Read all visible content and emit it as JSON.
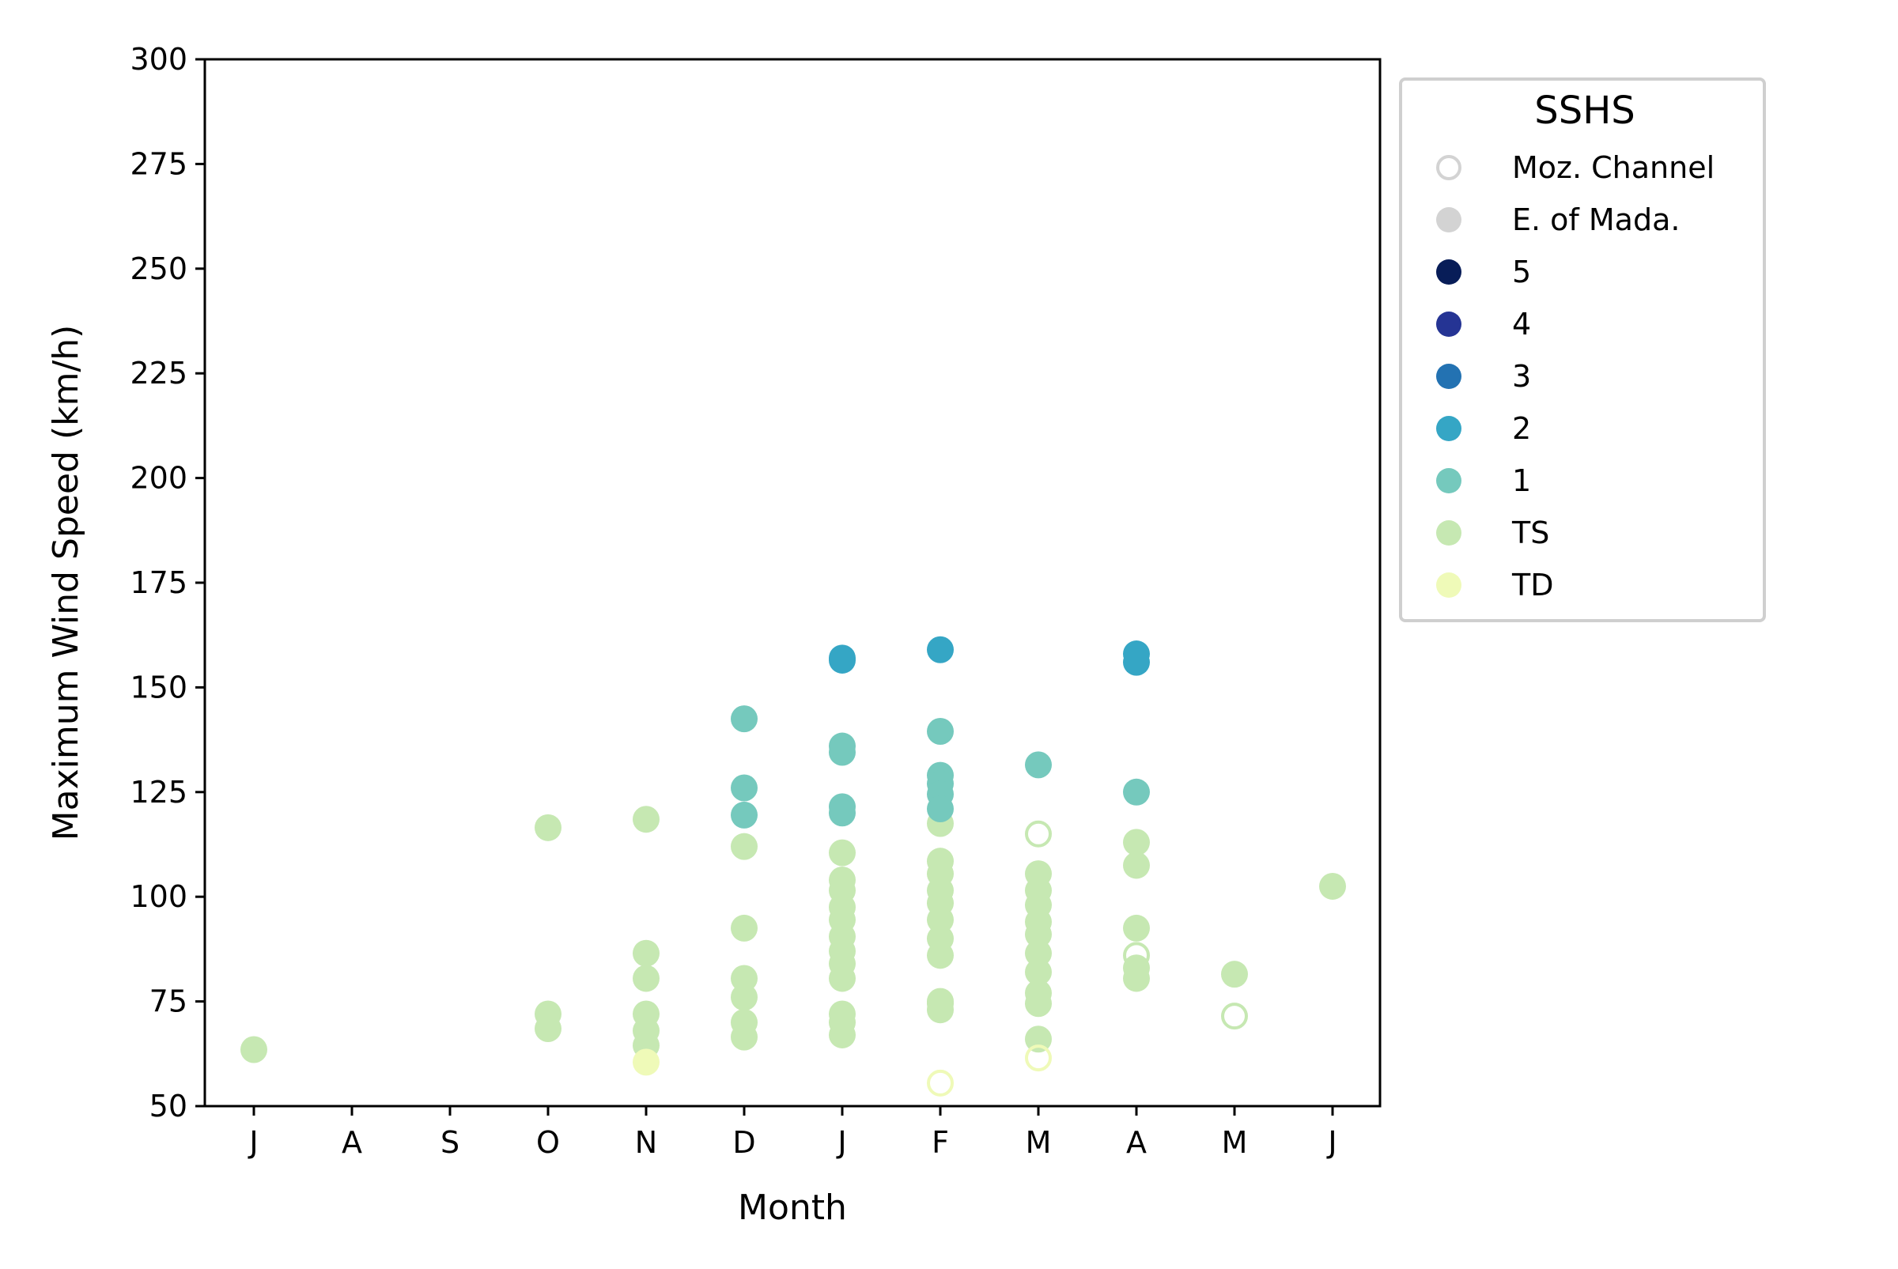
{
  "chart_data": {
    "type": "scatter",
    "title": "",
    "xlabel": "Month",
    "ylabel": "Maximum Wind Speed (km/h)",
    "categories": [
      "J",
      "A",
      "S",
      "O",
      "N",
      "D",
      "J",
      "F",
      "M",
      "A",
      "M",
      "J"
    ],
    "ylim": [
      50,
      300
    ],
    "yticks": [
      50,
      75,
      100,
      125,
      150,
      175,
      200,
      225,
      250,
      275,
      300
    ],
    "grid": false,
    "legend": {
      "title": "SSHS",
      "position": "outside-top-right",
      "entries": [
        {
          "label": "Moz. Channel",
          "marker": "hollow",
          "color": "#d3d3d3"
        },
        {
          "label": "E. of Mada.",
          "marker": "filled",
          "color": "#d3d3d3"
        },
        {
          "label": "5",
          "marker": "filled",
          "color": "#081d58"
        },
        {
          "label": "4",
          "marker": "filled",
          "color": "#253494"
        },
        {
          "label": "3",
          "marker": "filled",
          "color": "#2372b2"
        },
        {
          "label": "2",
          "marker": "filled",
          "color": "#35a6c5"
        },
        {
          "label": "1",
          "marker": "filled",
          "color": "#75c9bd"
        },
        {
          "label": "TS",
          "marker": "filled",
          "color": "#c6e8b2"
        },
        {
          "label": "TD",
          "marker": "filled",
          "color": "#effab8"
        }
      ]
    },
    "series": [
      {
        "category": "TS",
        "color": "#c6e8b2",
        "region": "E. of Mada.",
        "points": [
          [
            0,
            63.5
          ],
          [
            3,
            116.5
          ],
          [
            3,
            72
          ],
          [
            3,
            68.5
          ],
          [
            4,
            118.5
          ],
          [
            4,
            86.5
          ],
          [
            4,
            80.5
          ],
          [
            4,
            72
          ],
          [
            4,
            68
          ],
          [
            4,
            64.5
          ],
          [
            5,
            112
          ],
          [
            5,
            92.5
          ],
          [
            5,
            80.5
          ],
          [
            5,
            76
          ],
          [
            5,
            70
          ],
          [
            5,
            66.5
          ],
          [
            6,
            110.5
          ],
          [
            6,
            104
          ],
          [
            6,
            101.5
          ],
          [
            6,
            97.5
          ],
          [
            6,
            94.5
          ],
          [
            6,
            90.5
          ],
          [
            6,
            87
          ],
          [
            6,
            84
          ],
          [
            6,
            80.5
          ],
          [
            6,
            72
          ],
          [
            6,
            70
          ],
          [
            6,
            67
          ],
          [
            7,
            117.5
          ],
          [
            7,
            108.5
          ],
          [
            7,
            105.5
          ],
          [
            7,
            101.5
          ],
          [
            7,
            98.5
          ],
          [
            7,
            94.5
          ],
          [
            7,
            90
          ],
          [
            7,
            86
          ],
          [
            7,
            74.5
          ],
          [
            7,
            73
          ],
          [
            8,
            105.5
          ],
          [
            8,
            101.5
          ],
          [
            8,
            98
          ],
          [
            8,
            94
          ],
          [
            8,
            91
          ],
          [
            8,
            86.5
          ],
          [
            8,
            82
          ],
          [
            8,
            77
          ],
          [
            8,
            74.5
          ],
          [
            8,
            66
          ],
          [
            9,
            113
          ],
          [
            9,
            107.5
          ],
          [
            9,
            92.5
          ],
          [
            9,
            83
          ],
          [
            9,
            80.5
          ],
          [
            10,
            81.5
          ],
          [
            11,
            102.5
          ]
        ]
      },
      {
        "category": "TS",
        "color": "#c6e8b2",
        "region": "Moz. Channel",
        "points": [
          [
            7,
            75
          ],
          [
            8,
            115
          ],
          [
            9,
            86
          ],
          [
            10,
            71.5
          ]
        ]
      },
      {
        "category": "TD",
        "color": "#effab8",
        "region": "E. of Mada.",
        "points": [
          [
            4,
            60.5
          ]
        ]
      },
      {
        "category": "TD",
        "color": "#effab8",
        "region": "Moz. Channel",
        "points": [
          [
            7,
            55.5
          ],
          [
            8,
            61.5
          ]
        ]
      },
      {
        "category": "1",
        "color": "#75c9bd",
        "region": "E. of Mada.",
        "points": [
          [
            5,
            142.5
          ],
          [
            5,
            126
          ],
          [
            5,
            119.5
          ],
          [
            6,
            136
          ],
          [
            6,
            134.5
          ],
          [
            6,
            121.5
          ],
          [
            6,
            120
          ],
          [
            7,
            139.5
          ],
          [
            7,
            129
          ],
          [
            7,
            127
          ],
          [
            7,
            124.5
          ],
          [
            7,
            121
          ],
          [
            8,
            131.5
          ],
          [
            9,
            125
          ]
        ]
      },
      {
        "category": "2",
        "color": "#35a6c5",
        "region": "E. of Mada.",
        "points": [
          [
            6,
            157
          ],
          [
            6,
            156.5
          ],
          [
            7,
            159
          ],
          [
            9,
            158
          ],
          [
            9,
            156
          ]
        ]
      }
    ]
  }
}
